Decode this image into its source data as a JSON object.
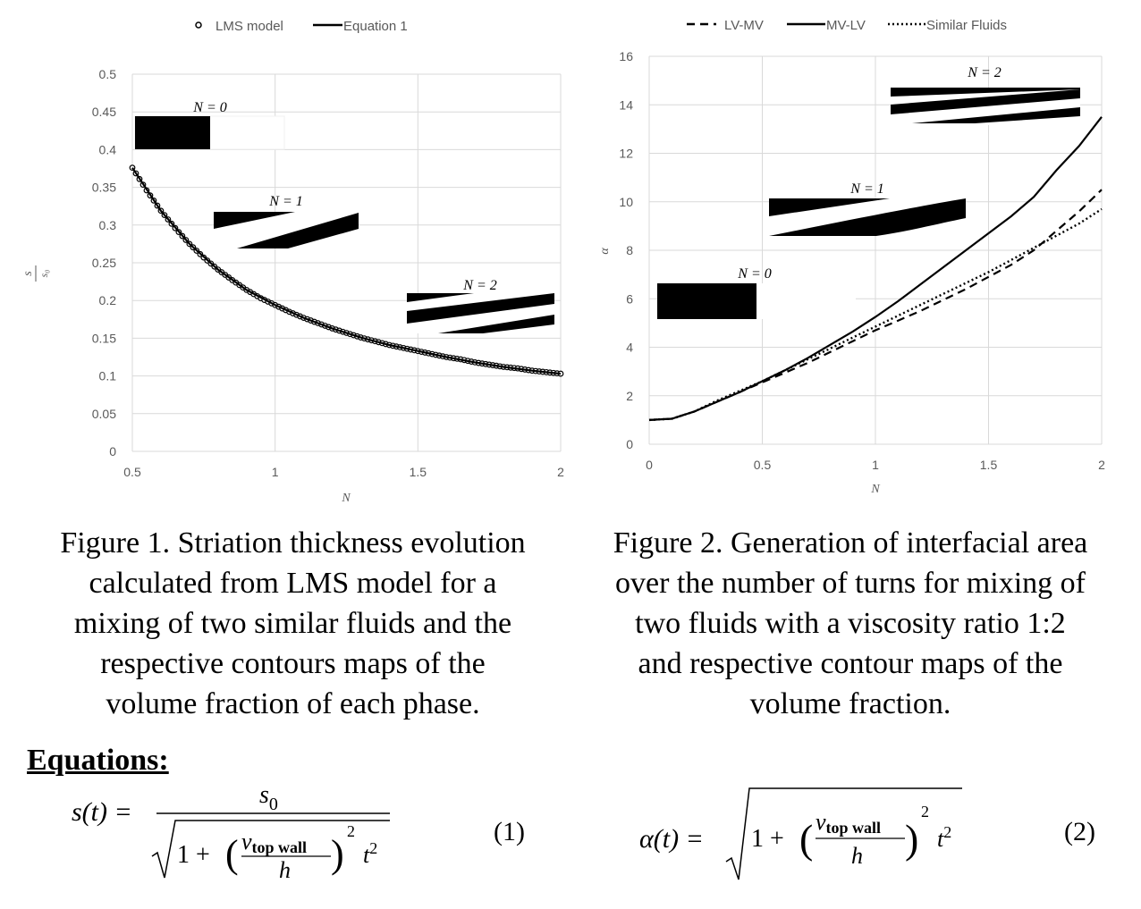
{
  "chart_data": [
    {
      "type": "scatter",
      "legend": [
        "LMS model",
        "Equation 1"
      ],
      "legend_position": "top",
      "xlabel": "N",
      "ylabel": "s/s₀",
      "ylabel_num": "s",
      "ylabel_den": "s₀",
      "xlim": [
        0.5,
        2
      ],
      "ylim": [
        0,
        0.5
      ],
      "x_ticks": [
        "0.5",
        "1",
        "1.5",
        "2"
      ],
      "y_ticks": [
        "0",
        "0.05",
        "0.1",
        "0.15",
        "0.2",
        "0.25",
        "0.3",
        "0.35",
        "0.4",
        "0.45",
        "0.5"
      ],
      "grid": true,
      "series": [
        {
          "name": "LMS model",
          "marker": "open-circle",
          "x": [
            0.5,
            0.55,
            0.6,
            0.65,
            0.7,
            0.75,
            0.8,
            0.85,
            0.9,
            0.95,
            1.0,
            1.05,
            1.1,
            1.15,
            1.2,
            1.25,
            1.3,
            1.35,
            1.4,
            1.45,
            1.5,
            1.55,
            1.6,
            1.65,
            1.7,
            1.75,
            1.8,
            1.85,
            1.9,
            1.95,
            2.0
          ],
          "y": [
            0.376,
            0.346,
            0.319,
            0.296,
            0.275,
            0.257,
            0.241,
            0.227,
            0.214,
            0.203,
            0.194,
            0.185,
            0.177,
            0.17,
            0.163,
            0.157,
            0.151,
            0.146,
            0.141,
            0.137,
            0.133,
            0.129,
            0.125,
            0.122,
            0.118,
            0.115,
            0.112,
            0.11,
            0.107,
            0.105,
            0.103
          ]
        },
        {
          "name": "Equation 1",
          "line": "solid",
          "x": [
            0.5,
            0.6,
            0.7,
            0.8,
            0.9,
            1.0,
            1.1,
            1.2,
            1.3,
            1.4,
            1.5,
            1.6,
            1.7,
            1.8,
            1.9,
            2.0
          ],
          "y": [
            0.376,
            0.319,
            0.275,
            0.241,
            0.214,
            0.194,
            0.177,
            0.163,
            0.151,
            0.141,
            0.133,
            0.125,
            0.118,
            0.112,
            0.107,
            0.103
          ]
        }
      ],
      "insets": [
        "N = 0",
        "N = 1",
        "N = 2"
      ]
    },
    {
      "type": "line",
      "legend": [
        "LV-MV",
        "MV-LV",
        "Similar Fluids"
      ],
      "legend_position": "top",
      "xlabel": "N",
      "ylabel": "α",
      "xlim": [
        0,
        2
      ],
      "ylim": [
        0,
        16
      ],
      "x_ticks": [
        "0",
        "0.5",
        "1",
        "1.5",
        "2"
      ],
      "y_ticks": [
        "0",
        "2",
        "4",
        "6",
        "8",
        "10",
        "12",
        "14",
        "16"
      ],
      "grid": true,
      "series": [
        {
          "name": "LV-MV",
          "line": "dashed",
          "x": [
            0,
            0.1,
            0.2,
            0.3,
            0.4,
            0.5,
            0.6,
            0.7,
            0.8,
            0.9,
            1.0,
            1.1,
            1.2,
            1.3,
            1.4,
            1.5,
            1.6,
            1.7,
            1.8,
            1.9,
            2.0
          ],
          "y": [
            1.0,
            1.05,
            1.35,
            1.75,
            2.15,
            2.55,
            2.95,
            3.35,
            3.8,
            4.25,
            4.7,
            5.1,
            5.5,
            5.95,
            6.4,
            6.9,
            7.4,
            8.0,
            8.8,
            9.6,
            10.5
          ]
        },
        {
          "name": "MV-LV",
          "line": "solid",
          "x": [
            0,
            0.1,
            0.2,
            0.3,
            0.4,
            0.5,
            0.6,
            0.7,
            0.8,
            0.9,
            1.0,
            1.1,
            1.2,
            1.3,
            1.4,
            1.5,
            1.6,
            1.7,
            1.8,
            1.9,
            2.0
          ],
          "y": [
            1.0,
            1.05,
            1.35,
            1.75,
            2.15,
            2.6,
            3.05,
            3.55,
            4.1,
            4.65,
            5.25,
            5.9,
            6.6,
            7.3,
            8.0,
            8.7,
            9.4,
            10.2,
            11.3,
            12.3,
            13.5
          ]
        },
        {
          "name": "Similar Fluids",
          "line": "dotted",
          "x": [
            0,
            0.1,
            0.2,
            0.3,
            0.4,
            0.5,
            0.6,
            0.7,
            0.8,
            0.9,
            1.0,
            1.1,
            1.2,
            1.3,
            1.4,
            1.5,
            1.6,
            1.7,
            1.8,
            1.9,
            2.0
          ],
          "y": [
            1.0,
            1.05,
            1.35,
            1.8,
            2.2,
            2.6,
            3.05,
            3.5,
            3.95,
            4.4,
            4.85,
            5.3,
            5.75,
            6.2,
            6.65,
            7.1,
            7.6,
            8.1,
            8.6,
            9.1,
            9.7
          ]
        }
      ],
      "insets": [
        "N = 0",
        "N = 1",
        "N = 2"
      ]
    }
  ],
  "captions": {
    "fig1": [
      "Figure 1. Striation thickness evolution",
      "calculated from LMS model for a",
      "mixing of two similar fluids and the",
      "respective contours maps of the",
      "volume fraction of each phase."
    ],
    "fig2": [
      "Figure 2. Generation of interfacial area",
      "over the number of turns for mixing of",
      "two fluids with a viscosity ratio 1:2",
      "and respective contour maps of the",
      "volume fraction."
    ]
  },
  "equations": {
    "heading": "Equations:",
    "eq1": {
      "lhs": "s(t) =",
      "numerator": "s",
      "numerator_sub": "0",
      "sqrt_one": "1 +",
      "v": "v",
      "v_sub": "top wall",
      "h": "h",
      "exp": "2",
      "t": "t",
      "t_exp": "2",
      "number": "(1)"
    },
    "eq2": {
      "lhs": "α(t) =",
      "sqrt_one": "1 +",
      "v": "v",
      "v_sub": "top wall",
      "h": "h",
      "exp": "2",
      "t": "t",
      "t_exp": "2",
      "number": "(2)"
    }
  }
}
